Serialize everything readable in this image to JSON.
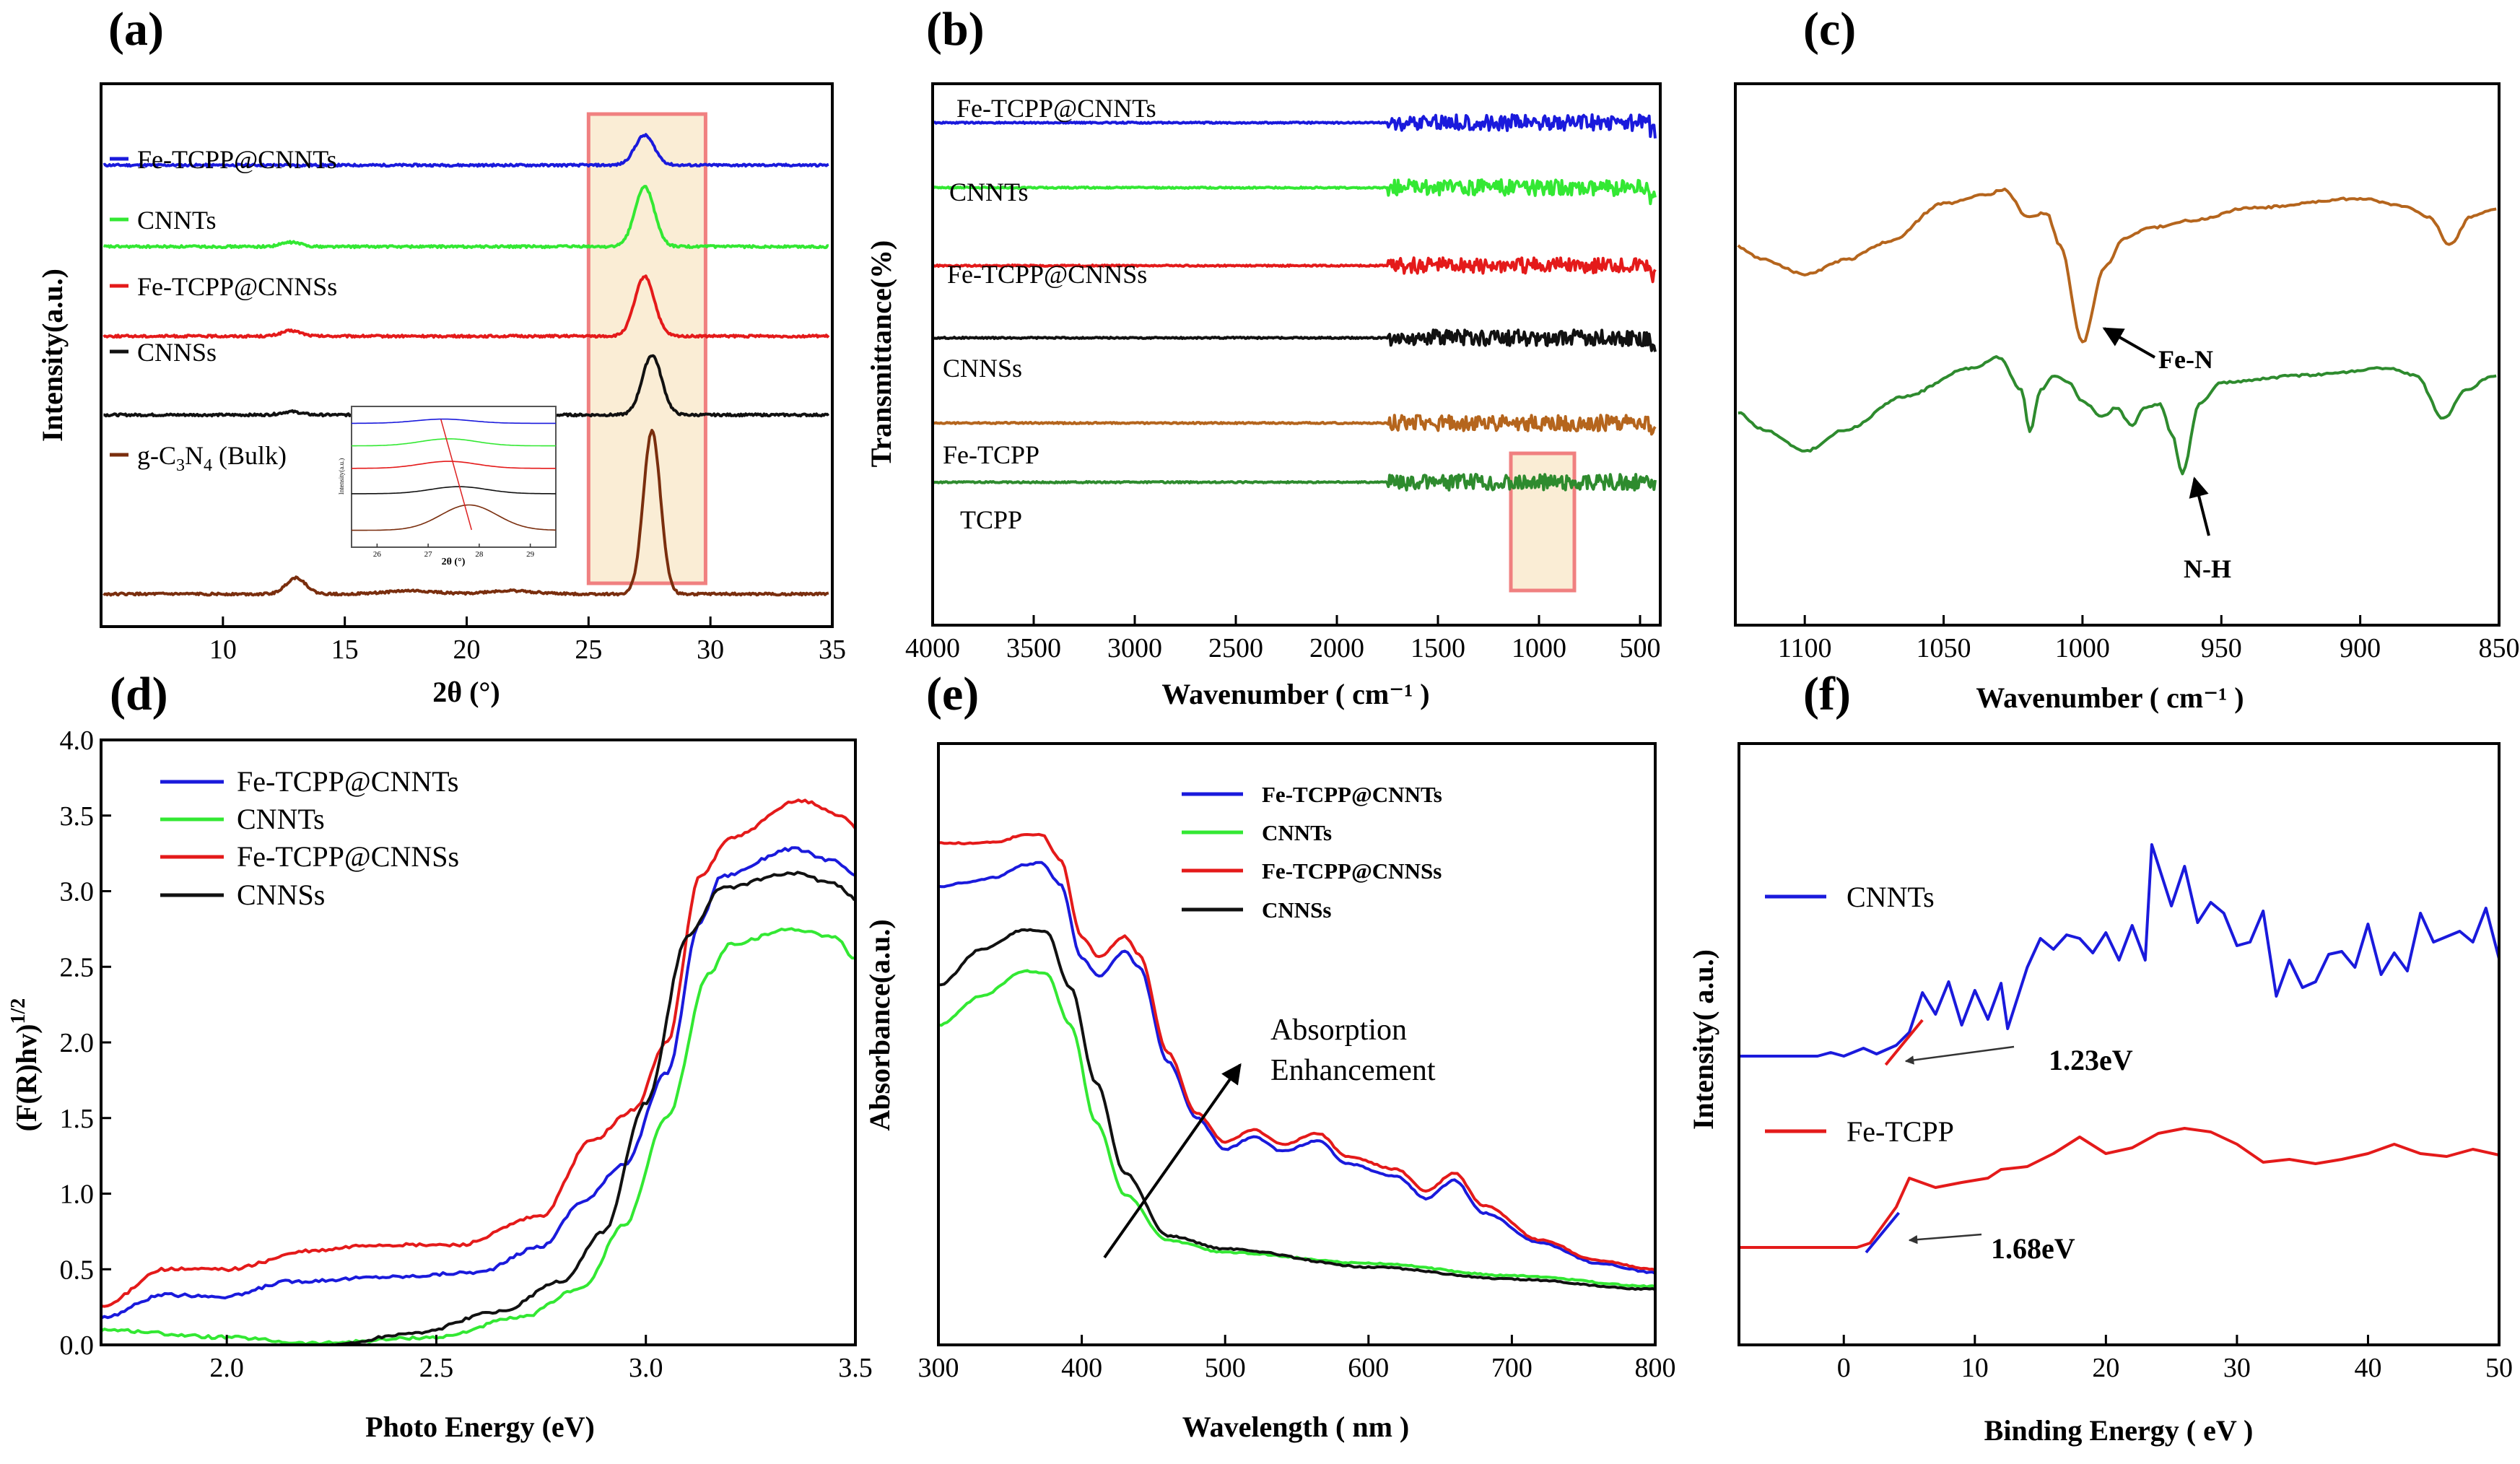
{
  "chart_data": [
    {
      "id": "a",
      "panel_label": "(a)",
      "type": "line",
      "xlabel": "2θ (°)",
      "ylabel": "Intensity(a.u.)",
      "xlim": [
        5,
        35
      ],
      "xticks": [
        "10",
        "15",
        "20",
        "25",
        "30",
        "35"
      ],
      "highlight_x": [
        25,
        29.8
      ],
      "series": [
        {
          "name": "Fe-TCPP@CNNTs",
          "color": "#1a1adc",
          "baseline": 0.85,
          "peaks": [
            [
              27.3,
              0.055,
              0.4
            ]
          ]
        },
        {
          "name": "CNNTs",
          "color": "#33e833",
          "baseline": 0.7,
          "peaks": [
            [
              27.3,
              0.11,
              0.4
            ],
            [
              12.8,
              0.008,
              0.4
            ]
          ]
        },
        {
          "name": "Fe-TCPP@CNNSs",
          "color": "#e41a1a",
          "baseline": 0.535,
          "peaks": [
            [
              27.3,
              0.11,
              0.4
            ],
            [
              12.8,
              0.01,
              0.4
            ]
          ]
        },
        {
          "name": "CNNSs",
          "color": "#111111",
          "baseline": 0.39,
          "peaks": [
            [
              27.6,
              0.11,
              0.4
            ],
            [
              12.8,
              0.006,
              0.4
            ]
          ]
        },
        {
          "name": "g-C3N4 (Bulk)",
          "color": "#7a2e0e",
          "baseline": 0.06,
          "peaks": [
            [
              27.6,
              0.3,
              0.35
            ],
            [
              13.0,
              0.03,
              0.4
            ],
            [
              17.7,
              0.006,
              1.0
            ],
            [
              21.8,
              0.006,
              1.0
            ]
          ]
        }
      ],
      "legend_labels": [
        "Fe-TCPP@CNNTs",
        "CNNTs",
        "Fe-TCPP@CNNSs",
        "CNNSs"
      ],
      "legend_bulk": {
        "pre": "g-C",
        "sub": "3",
        "post": "N",
        "sub2": "4",
        "tail": " (Bulk)"
      },
      "inset": {
        "xticks": [
          "26",
          "27",
          "28",
          "29"
        ],
        "xlabel": "2θ (°)",
        "ylabel": "Intensity(a.u.)",
        "xlim": [
          25.5,
          29.5
        ]
      }
    },
    {
      "id": "b",
      "panel_label": "(b)",
      "type": "line",
      "xlabel": "Wavenumber ( cm⁻¹ )",
      "ylabel": "Transmittance(%)",
      "xlim": [
        4000,
        400
      ],
      "xticks": [
        "4000",
        "3500",
        "3000",
        "2500",
        "2000",
        "1500",
        "1000",
        "500"
      ],
      "highlight_x": [
        1120,
        820
      ],
      "series": [
        {
          "name": "Fe-TCPP@CNNTs",
          "color": "#1a1adc"
        },
        {
          "name": "CNNTs",
          "color": "#33e833"
        },
        {
          "name": "Fe-TCPP@CNNSs",
          "color": "#e41a1a"
        },
        {
          "name": "CNNSs",
          "color": "#111111"
        },
        {
          "name": "Fe-TCPP",
          "color": "#b5651d"
        },
        {
          "name": "TCPP",
          "color": "#2e8b2e"
        }
      ]
    },
    {
      "id": "c",
      "panel_label": "(c)",
      "type": "line",
      "xlabel": "Wavenumber ( cm⁻¹ )",
      "xlim": [
        1125,
        850
      ],
      "xticks": [
        "1100",
        "1050",
        "1000",
        "950",
        "900",
        "850"
      ],
      "annotations": [
        "Fe-N",
        "N-H"
      ],
      "series": [
        {
          "name": "Fe-TCPP",
          "color": "#b5651d"
        },
        {
          "name": "TCPP",
          "color": "#2e8b2e"
        }
      ]
    },
    {
      "id": "d",
      "panel_label": "(d)",
      "type": "line",
      "xlabel": "Photo Energy (eV)",
      "ylabel_main": "(F(R)hv)",
      "ylabel_sup": "1/2",
      "xlim": [
        1.7,
        3.5
      ],
      "ylim": [
        0,
        4.0
      ],
      "xticks": [
        "2.0",
        "2.5",
        "3.0",
        "3.5"
      ],
      "yticks": [
        "0.0",
        "0.5",
        "1.0",
        "1.5",
        "2.0",
        "2.5",
        "3.0",
        "3.5",
        "4.0"
      ],
      "series": [
        {
          "name": "Fe-TCPP@CNNTs",
          "color": "#1a1adc"
        },
        {
          "name": "CNNTs",
          "color": "#33e833"
        },
        {
          "name": "Fe-TCPP@CNNSs",
          "color": "#e41a1a"
        },
        {
          "name": "CNNSs",
          "color": "#111111"
        }
      ]
    },
    {
      "id": "e",
      "panel_label": "(e)",
      "type": "line",
      "xlabel": "Wavelength ( nm )",
      "ylabel": "Absorbance(a.u.)",
      "xlim": [
        300,
        800
      ],
      "xticks": [
        "300",
        "400",
        "500",
        "600",
        "700",
        "800"
      ],
      "annotation": [
        "Absorption",
        "Enhancement"
      ],
      "series": [
        {
          "name": "Fe-TCPP@CNNTs",
          "color": "#1a1adc"
        },
        {
          "name": "CNNTs",
          "color": "#33e833"
        },
        {
          "name": "Fe-TCPP@CNNSs",
          "color": "#e41a1a"
        },
        {
          "name": "CNNSs",
          "color": "#111111"
        }
      ]
    },
    {
      "id": "f",
      "panel_label": "(f)",
      "type": "line",
      "xlabel": "Binding Energy ( eV )",
      "ylabel": "Intensity( a.u.)",
      "xlim": [
        -8,
        50
      ],
      "xticks": [
        "0",
        "10",
        "20",
        "30",
        "40",
        "50"
      ],
      "series": [
        {
          "name": "CNNTs",
          "color": "#1a1adc",
          "vb_edge": "1.23eV"
        },
        {
          "name": "Fe-TCPP",
          "color": "#e41a1a",
          "vb_edge": "1.68eV"
        }
      ]
    }
  ]
}
